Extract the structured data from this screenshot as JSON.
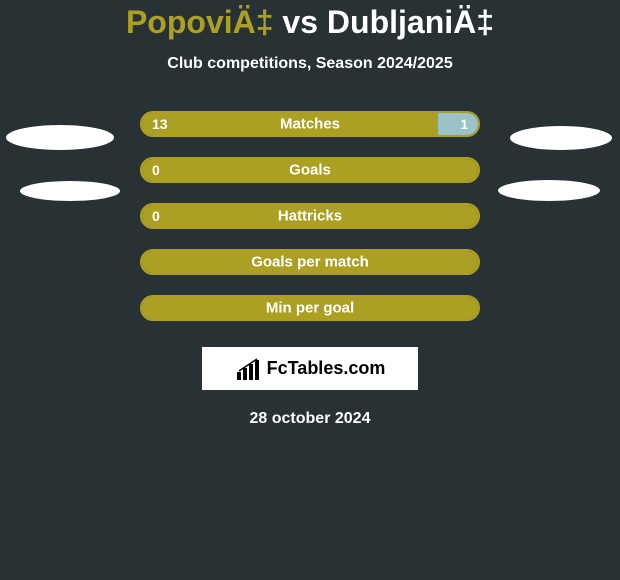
{
  "header": {
    "player1": "PopoviÄ‡",
    "vs": "vs",
    "player2": "DubljaniÄ‡",
    "subtitle": "Club competitions, Season 2024/2025"
  },
  "theme": {
    "bg": "#283134",
    "accent": "#aca024",
    "secondary": "#9cc2c9",
    "text": "#ffffff"
  },
  "rows": [
    {
      "label": "Matches",
      "left_val": "13",
      "right_val": "1",
      "left_pct": 88,
      "right_pct": 12,
      "show_left": true,
      "show_right": true,
      "full_bg": false
    },
    {
      "label": "Goals",
      "left_val": "0",
      "right_val": "",
      "left_pct": 100,
      "right_pct": 0,
      "show_left": true,
      "show_right": false,
      "full_bg": true
    },
    {
      "label": "Hattricks",
      "left_val": "0",
      "right_val": "",
      "left_pct": 100,
      "right_pct": 0,
      "show_left": true,
      "show_right": false,
      "full_bg": true
    },
    {
      "label": "Goals per match",
      "left_val": "",
      "right_val": "",
      "left_pct": 100,
      "right_pct": 0,
      "show_left": false,
      "show_right": false,
      "full_bg": true
    },
    {
      "label": "Min per goal",
      "left_val": "",
      "right_val": "",
      "left_pct": 100,
      "right_pct": 0,
      "show_left": false,
      "show_right": false,
      "full_bg": true
    }
  ],
  "logo": {
    "text": "FcTables.com"
  },
  "footer": {
    "date": "28 october 2024"
  }
}
